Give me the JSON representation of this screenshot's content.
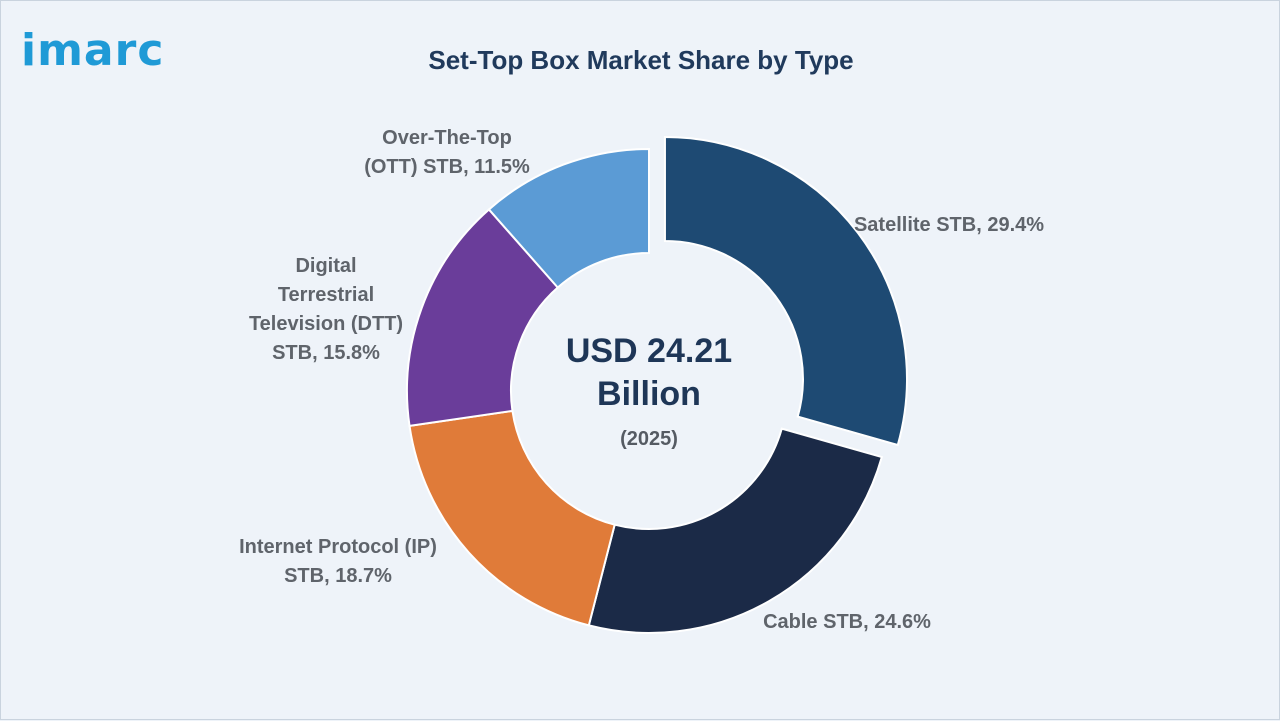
{
  "logo": {
    "text": "imarc"
  },
  "chart_data": {
    "type": "pie",
    "title": "Set-Top Box Market Share by Type",
    "center_label": {
      "line1": "USD 24.21",
      "line2": "Billion",
      "year": "(2025)"
    },
    "unit": "%",
    "categories": [
      "Satellite STB",
      "Cable STB",
      "Internet Protocol (IP) STB",
      "Digital Terrestrial Television (DTT) STB",
      "Over-The-Top (OTT) STB"
    ],
    "values": [
      29.4,
      24.6,
      18.7,
      15.8,
      11.5
    ],
    "labels": [
      [
        "Satellite STB, 29.4%"
      ],
      [
        "Cable STB, 24.6%"
      ],
      [
        "Internet Protocol (IP)",
        "STB, 18.7%"
      ],
      [
        "Digital",
        "Terrestrial",
        "Television (DTT)",
        "STB, 15.8%"
      ],
      [
        "Over-The-Top",
        "(OTT) STB, 11.5%"
      ]
    ],
    "colors": [
      "#1e4a73",
      "#1b2a47",
      "#e07b39",
      "#6a3d9a",
      "#5b9bd5"
    ],
    "exploded": [
      "Satellite STB"
    ],
    "legend": "none"
  }
}
